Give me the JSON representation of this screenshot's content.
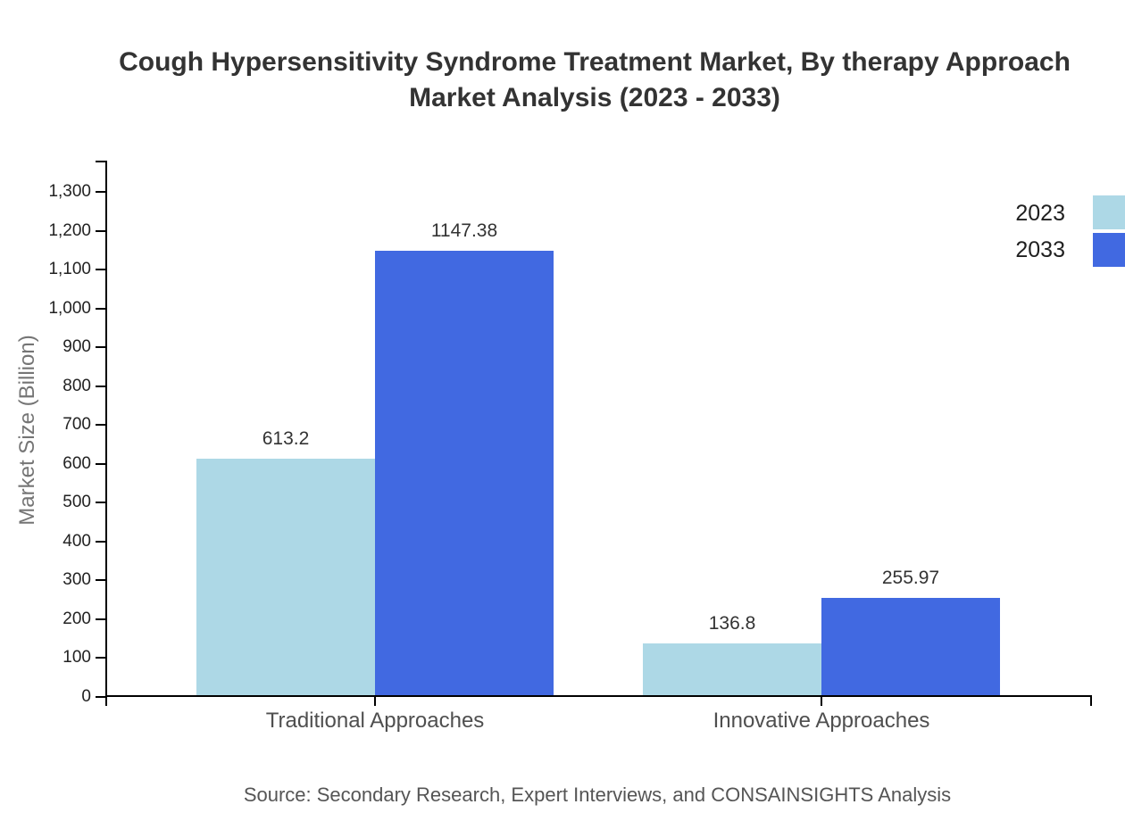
{
  "chart_data": {
    "type": "bar",
    "title": "Cough Hypersensitivity Syndrome Treatment Market, By therapy Approach Market Analysis (2023 - 2033)",
    "title_lines": [
      "Cough Hypersensitivity Syndrome Treatment Market, By therapy Approach",
      "Market Analysis (2023 - 2033)"
    ],
    "categories": [
      "Traditional Approaches",
      "Innovative Approaches"
    ],
    "series": [
      {
        "name": "2023",
        "color": "#ADD8E6",
        "values": [
          613.2,
          136.8
        ],
        "value_labels": [
          "613.2",
          "136.8"
        ]
      },
      {
        "name": "2033",
        "color": "#4169E1",
        "values": [
          1147.38,
          255.97
        ],
        "value_labels": [
          "1147.38",
          "255.97"
        ]
      }
    ],
    "xlabel": "",
    "ylabel": "Market Size (Billion)",
    "ylim": [
      0,
      1300
    ],
    "ytick_step": 100,
    "ytick_labels": [
      "0",
      "100",
      "200",
      "300",
      "400",
      "500",
      "600",
      "700",
      "800",
      "900",
      "1,000",
      "1,100",
      "1,200",
      "1,300"
    ],
    "grid": false,
    "legend_position": "top-right",
    "source": "Source: Secondary Research, Expert Interviews, and CONSAINSIGHTS Analysis"
  }
}
